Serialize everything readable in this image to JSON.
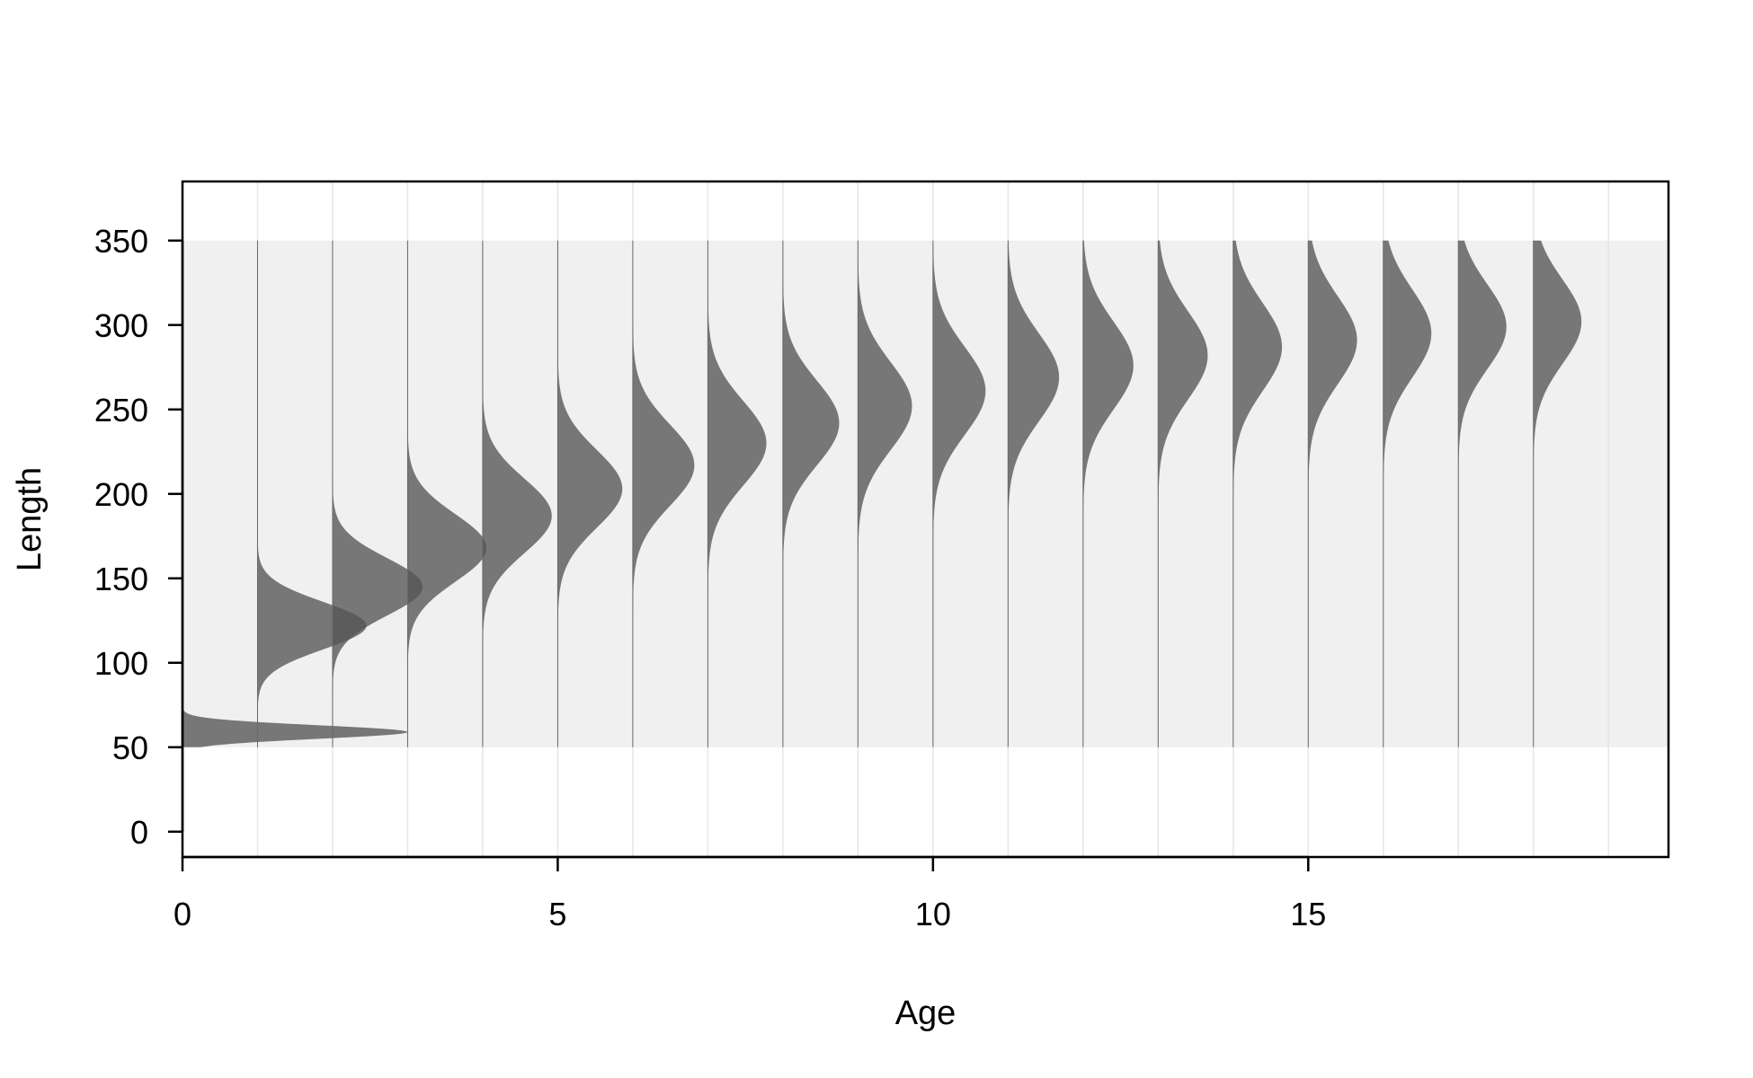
{
  "chart_data": {
    "type": "area",
    "xlabel": "Age",
    "ylabel": "Length",
    "xlim": [
      0,
      19.8
    ],
    "ylim": [
      -15,
      385
    ],
    "x_ticks": [
      0,
      5,
      10,
      15
    ],
    "y_ticks": [
      0,
      50,
      100,
      150,
      200,
      250,
      300,
      350
    ],
    "length_bin_range": [
      50,
      350
    ],
    "grid": "vertical lines at each integer age",
    "fill_color": "#555555",
    "background_band_color": "#f0f0f0",
    "distribution_description": "Normal length-at-age distribution drawn as a horizontal density curve to the right of each integer age; height in age units equals relative density",
    "series": [
      {
        "age": 0,
        "mean_length": 59,
        "sd": 4,
        "peak_width": 3.0
      },
      {
        "age": 1,
        "mean_length": 122,
        "sd": 14,
        "peak_width": 1.45
      },
      {
        "age": 2,
        "mean_length": 145,
        "sd": 17,
        "peak_width": 1.2
      },
      {
        "age": 3,
        "mean_length": 168,
        "sd": 20,
        "peak_width": 1.05
      },
      {
        "age": 4,
        "mean_length": 187,
        "sd": 22,
        "peak_width": 0.92
      },
      {
        "age": 5,
        "mean_length": 203,
        "sd": 23,
        "peak_width": 0.86
      },
      {
        "age": 6,
        "mean_length": 217,
        "sd": 24,
        "peak_width": 0.82
      },
      {
        "age": 7,
        "mean_length": 230,
        "sd": 25,
        "peak_width": 0.78
      },
      {
        "age": 8,
        "mean_length": 242,
        "sd": 25,
        "peak_width": 0.75
      },
      {
        "age": 9,
        "mean_length": 252,
        "sd": 26,
        "peak_width": 0.72
      },
      {
        "age": 10,
        "mean_length": 261,
        "sd": 26,
        "peak_width": 0.7
      },
      {
        "age": 11,
        "mean_length": 269,
        "sd": 26,
        "peak_width": 0.68
      },
      {
        "age": 12,
        "mean_length": 276,
        "sd": 26,
        "peak_width": 0.67
      },
      {
        "age": 13,
        "mean_length": 282,
        "sd": 26,
        "peak_width": 0.66
      },
      {
        "age": 14,
        "mean_length": 287,
        "sd": 26,
        "peak_width": 0.65
      },
      {
        "age": 15,
        "mean_length": 291,
        "sd": 26,
        "peak_width": 0.65
      },
      {
        "age": 16,
        "mean_length": 295,
        "sd": 26,
        "peak_width": 0.64
      },
      {
        "age": 17,
        "mean_length": 299,
        "sd": 25,
        "peak_width": 0.64
      },
      {
        "age": 18,
        "mean_length": 302,
        "sd": 25,
        "peak_width": 0.64
      }
    ]
  }
}
